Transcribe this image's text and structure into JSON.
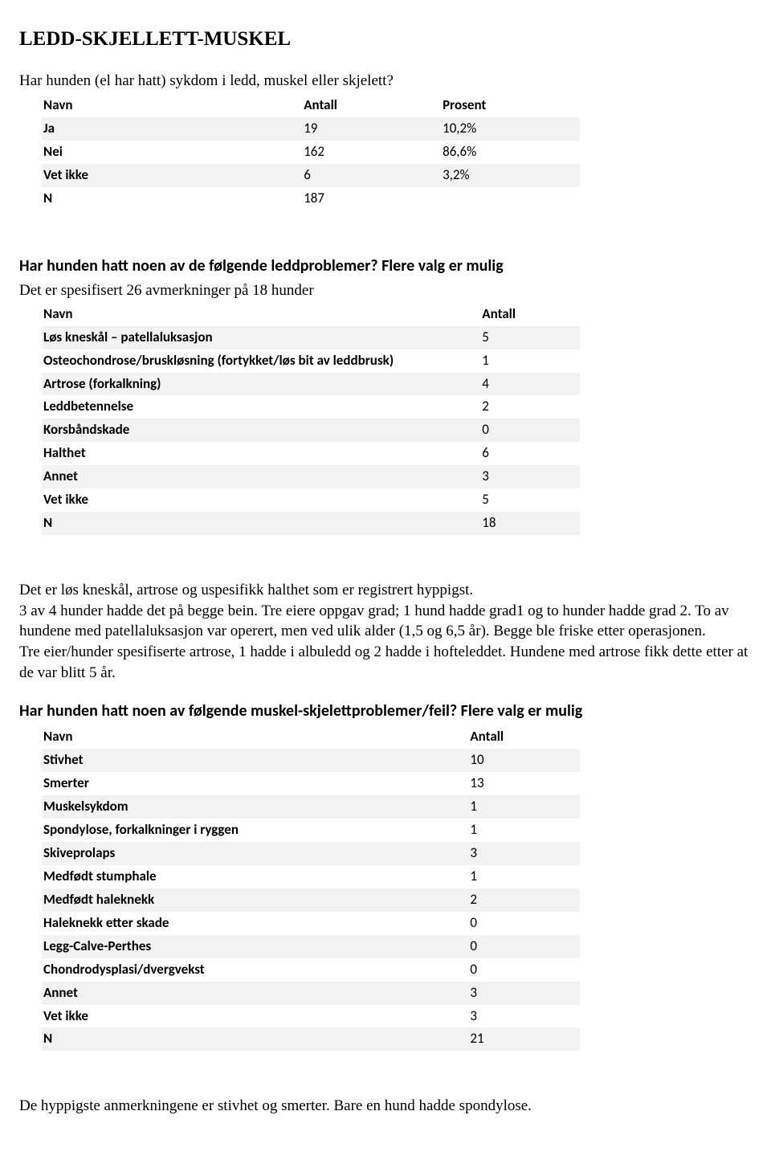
{
  "title": "LEDD-SKJELLETT-MUSKEL",
  "q1": {
    "text": "Har hunden (el har hatt) sykdom i ledd, muskel eller skjelett?",
    "headers": [
      "Navn",
      "Antall",
      "Prosent"
    ],
    "rows": [
      {
        "label": "Ja",
        "count": "19",
        "pct": "10,2%"
      },
      {
        "label": "Nei",
        "count": "162",
        "pct": "86,6%"
      },
      {
        "label": "Vet ikke",
        "count": "6",
        "pct": "3,2%"
      },
      {
        "label": "N",
        "count": "187",
        "pct": ""
      }
    ],
    "col_widths": [
      "300px",
      "160px",
      "160px"
    ]
  },
  "q2": {
    "text": "Har hunden hatt noen av de følgende leddproblemer? Flere valg er mulig",
    "subnote": "Det er spesifisert 26 avmerkninger på 18 hunder",
    "headers": [
      "Navn",
      "Antall"
    ],
    "rows": [
      {
        "label": "Løs kneskål – patellaluksasjon",
        "count": "5"
      },
      {
        "label": "Osteochondrose/bruskløsning (fortykket/løs bit av leddbrusk)",
        "count": "1"
      },
      {
        "label": "Artrose (forkalkning)",
        "count": "4"
      },
      {
        "label": "Leddbetennelse",
        "count": "2"
      },
      {
        "label": "Korsbåndskade",
        "count": "0"
      },
      {
        "label": "Halthet",
        "count": "6"
      },
      {
        "label": "Annet",
        "count": "3"
      },
      {
        "label": "Vet ikke",
        "count": "5"
      },
      {
        "label": "N",
        "count": "18"
      }
    ],
    "col_widths": [
      "530px",
      "120px"
    ]
  },
  "para1": "Det er løs kneskål, artrose og uspesifikk halthet som er registrert hyppigst.\n3 av 4 hunder hadde det på begge bein. Tre eiere oppgav grad; 1 hund hadde grad1 og to hunder hadde grad 2. To av hundene med patellaluksasjon var operert, men ved ulik alder (1,5 og 6,5 år). Begge ble friske etter operasjonen.\nTre eier/hunder spesifiserte artrose, 1 hadde i albuledd og 2 hadde i hofteleddet.  Hundene med artrose fikk dette etter at de var blitt 5 år.",
  "q3": {
    "text": "Har hunden hatt noen av følgende muskel-skjelettproblemer/feil? Flere valg er mulig",
    "headers": [
      "Navn",
      "Antall"
    ],
    "rows": [
      {
        "label": "Stivhet",
        "count": "10"
      },
      {
        "label": "Smerter",
        "count": "13"
      },
      {
        "label": "Muskelsykdom",
        "count": "1"
      },
      {
        "label": "Spondylose, forkalkninger i ryggen",
        "count": "1"
      },
      {
        "label": "Skiveprolaps",
        "count": "3"
      },
      {
        "label": "Medfødt stumphale",
        "count": "1"
      },
      {
        "label": "Medfødt haleknekk",
        "count": "2"
      },
      {
        "label": "Haleknekk etter skade",
        "count": "0"
      },
      {
        "label": "Legg-Calve-Perthes",
        "count": "0"
      },
      {
        "label": "Chondrodysplasi/dvergvekst",
        "count": "0"
      },
      {
        "label": "Annet",
        "count": "3"
      },
      {
        "label": "Vet ikke",
        "count": "3"
      },
      {
        "label": "N",
        "count": "21"
      }
    ],
    "col_widths": [
      "460px",
      "120px"
    ]
  },
  "para2": "De hyppigste anmerkningene er stivhet og smerter. Bare en hund hadde spondylose.",
  "colors": {
    "row_shade": "#f2f2f2",
    "background": "#ffffff",
    "text": "#000000"
  }
}
